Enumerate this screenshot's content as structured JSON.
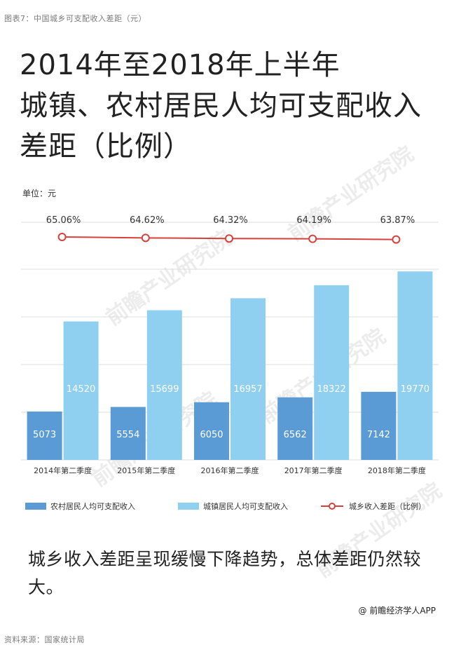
{
  "caption": "图表7：中国城乡可支配收入差距（元）",
  "source": "资料来源：国家统计局",
  "title_lines": [
    "2014年至2018年上半年",
    "城镇、农村居民人均可支配收入",
    "差距（比例）"
  ],
  "unit_label": "单位：元",
  "conclusion": "城乡收入差距呈现缓慢下降趋势，总体差距仍然较大。",
  "brand": "@ 前瞻经济学人APP",
  "watermark": "前瞻产业研究院",
  "colors": {
    "rural": "#5b9bd5",
    "urban": "#8fd0f0",
    "ratio_line": "#d8413b",
    "grid": "#dcdcdc"
  },
  "chart_data": {
    "type": "bar",
    "categories": [
      "2014年第二季度",
      "2015年第二季度",
      "2016年第二季度",
      "2017年第二季度",
      "2018年第二季度"
    ],
    "series": [
      {
        "name": "农村居民人均可支配收入",
        "values": [
          5073,
          5554,
          6050,
          6562,
          7142
        ]
      },
      {
        "name": "城镇居民人均可支配收入",
        "values": [
          14520,
          15699,
          16957,
          18322,
          19770
        ]
      }
    ],
    "line_series": {
      "name": "城乡收入差距（比例）",
      "values": [
        65.06,
        64.62,
        64.32,
        64.19,
        63.87
      ],
      "labels": [
        "65.06%",
        "64.62%",
        "64.32%",
        "64.19%",
        "63.87%"
      ]
    },
    "ylim": [
      0,
      20000
    ],
    "grid": true,
    "legend": "bottom"
  }
}
